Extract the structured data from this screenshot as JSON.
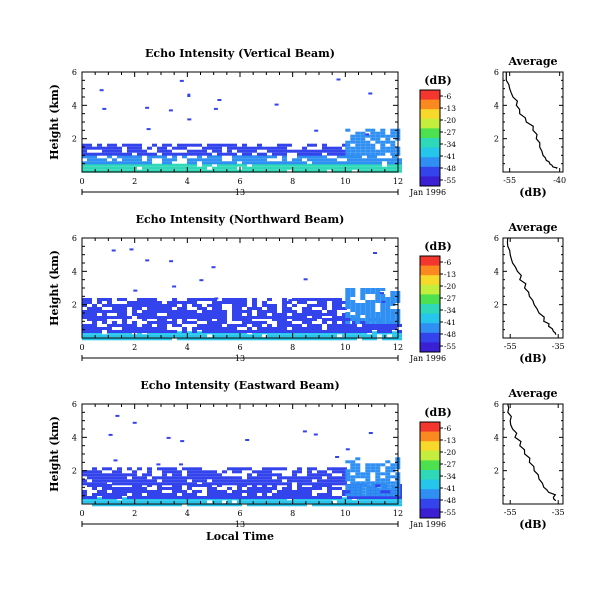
{
  "chart_data": [
    {
      "type": "heatmap",
      "title": "Echo Intensity (Vertical Beam)",
      "ylabel": "Height (km)",
      "xlim": [
        0,
        12
      ],
      "ylim": [
        0,
        6
      ],
      "x_ticks": [
        "0",
        "2",
        "4",
        "6",
        "8",
        "10",
        "12"
      ],
      "y_ticks": [
        "2",
        "4",
        "6"
      ],
      "date_marker": "13",
      "date_label": "Jan 1996",
      "colorbar": {
        "unit": "(dB)",
        "ticks": [
          "-6",
          "-13",
          "-20",
          "-27",
          "-34",
          "-41",
          "-48",
          "-55"
        ]
      },
      "echo_layers": [
        {
          "x": [
            0,
            12
          ],
          "y": [
            0,
            0.5
          ],
          "level": "-34"
        },
        {
          "x": [
            0,
            12
          ],
          "y": [
            0.5,
            1.0
          ],
          "level": "-48"
        },
        {
          "x": [
            0,
            10
          ],
          "y": [
            1.0,
            1.7
          ],
          "level": "-52"
        },
        {
          "x": [
            10,
            12
          ],
          "y": [
            1.0,
            2.6
          ],
          "level": "-44"
        },
        {
          "x": [
            4,
            4.1
          ],
          "y": [
            4.5,
            4.7
          ],
          "level": "-52"
        }
      ],
      "profile": {
        "title": "Average",
        "xlabel": "(dB)",
        "x_ticks": [
          "-55",
          "-40"
        ],
        "y_ticks": [
          "2",
          "4",
          "6"
        ],
        "x": [
          -56,
          -56,
          -55,
          -54,
          -53,
          -52,
          -50,
          -48,
          -47,
          -46,
          -45,
          -44,
          -43,
          -42,
          -41
        ],
        "y": [
          6.0,
          5.5,
          5.0,
          4.5,
          4.0,
          3.5,
          3.0,
          2.5,
          2.0,
          1.5,
          1.0,
          0.7,
          0.5,
          0.3,
          0.2
        ],
        "xlim": [
          -57,
          -39
        ],
        "ylim": [
          0,
          6
        ]
      }
    },
    {
      "type": "heatmap",
      "title": "Echo Intensity (Northward Beam)",
      "ylabel": "Height (km)",
      "xlim": [
        0,
        12
      ],
      "ylim": [
        0,
        6
      ],
      "x_ticks": [
        "0",
        "2",
        "4",
        "6",
        "8",
        "10",
        "12"
      ],
      "y_ticks": [
        "2",
        "4",
        "6"
      ],
      "date_marker": "13",
      "date_label": "Jan 1996",
      "colorbar": {
        "unit": "(dB)",
        "ticks": [
          "-6",
          "-13",
          "-20",
          "-27",
          "-34",
          "-41",
          "-48",
          "-55"
        ]
      },
      "echo_layers": [
        {
          "x": [
            0,
            12
          ],
          "y": [
            0,
            0.4
          ],
          "level": "-38"
        },
        {
          "x": [
            0,
            12
          ],
          "y": [
            0.4,
            1.2
          ],
          "level": "-50"
        },
        {
          "x": [
            0,
            10
          ],
          "y": [
            1.2,
            2.4
          ],
          "level": "-53"
        },
        {
          "x": [
            10,
            12
          ],
          "y": [
            1.0,
            3.0
          ],
          "level": "-45"
        }
      ],
      "profile": {
        "title": "Average",
        "xlabel": "(dB)",
        "x_ticks": [
          "-55",
          "-35"
        ],
        "y_ticks": [
          "2",
          "4",
          "6"
        ],
        "x": [
          -56,
          -56,
          -55,
          -54,
          -52,
          -51,
          -49,
          -47,
          -45,
          -43,
          -41,
          -39,
          -37,
          -36
        ],
        "y": [
          6.0,
          5.5,
          5.0,
          4.5,
          4.0,
          3.5,
          3.0,
          2.5,
          2.0,
          1.5,
          1.0,
          0.7,
          0.4,
          0.2
        ],
        "xlim": [
          -58,
          -33
        ],
        "ylim": [
          0,
          6
        ]
      }
    },
    {
      "type": "heatmap",
      "title": "Echo Intensity (Eastward Beam)",
      "ylabel": "Height (km)",
      "xaxis_label": "Local Time",
      "xlim": [
        0,
        12
      ],
      "ylim": [
        0,
        6
      ],
      "x_ticks": [
        "0",
        "2",
        "4",
        "6",
        "8",
        "10",
        "12"
      ],
      "y_ticks": [
        "2",
        "4",
        "6"
      ],
      "date_marker": "13",
      "date_label": "Jan 1996",
      "colorbar": {
        "unit": "(dB)",
        "ticks": [
          "-6",
          "-13",
          "-20",
          "-27",
          "-34",
          "-41",
          "-48",
          "-55"
        ]
      },
      "echo_layers": [
        {
          "x": [
            0,
            12
          ],
          "y": [
            0,
            0.4
          ],
          "level": "-38"
        },
        {
          "x": [
            0,
            12
          ],
          "y": [
            0.4,
            1.2
          ],
          "level": "-50"
        },
        {
          "x": [
            0,
            10
          ],
          "y": [
            1.2,
            2.2
          ],
          "level": "-53"
        },
        {
          "x": [
            10,
            12
          ],
          "y": [
            0.6,
            2.8
          ],
          "level": "-44"
        }
      ],
      "profile": {
        "title": "Average",
        "xlabel": "(dB)",
        "x_ticks": [
          "-55",
          "-35"
        ],
        "y_ticks": [
          "2",
          "4",
          "6"
        ],
        "x": [
          -56,
          -56,
          -55,
          -54,
          -53,
          -51,
          -49,
          -47,
          -45,
          -43,
          -41,
          -39,
          -37,
          -36
        ],
        "y": [
          6.0,
          5.5,
          5.0,
          4.5,
          4.0,
          3.5,
          3.0,
          2.5,
          2.0,
          1.5,
          1.0,
          0.7,
          0.4,
          0.2
        ],
        "xlim": [
          -58,
          -33
        ],
        "ylim": [
          0,
          6
        ]
      }
    }
  ],
  "colors": {
    "colorbar": [
      "#f4372e",
      "#fa8a1f",
      "#f7d92c",
      "#c3ee3d",
      "#4de14f",
      "#2fd8b8",
      "#26c5ec",
      "#2f8ff2",
      "#3344ec",
      "#3a1fd3"
    ]
  }
}
